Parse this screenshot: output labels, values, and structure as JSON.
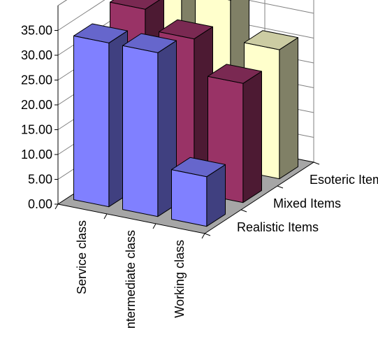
{
  "chart_data": {
    "type": "bar",
    "variant": "3d-column",
    "categories": [
      "Service class",
      "ntermediate class",
      "Working class"
    ],
    "series": [
      {
        "name": "Realistic Items",
        "values": [
          33.0,
          33.0,
          10.0
        ],
        "color": "#8080FF"
      },
      {
        "name": "Mixed Items",
        "values": [
          35.0,
          31.0,
          24.0
        ],
        "color": "#993366"
      },
      {
        "name": "Esoteric Items",
        "values": [
          34.5,
          34.0,
          26.0
        ],
        "color": "#FFFFCC"
      }
    ],
    "yticks": [
      "0.00",
      "5.00",
      "10.00",
      "15.00",
      "20.00",
      "25.00",
      "30.00",
      "35.00"
    ],
    "ylim": [
      0,
      40
    ],
    "grid": true,
    "colors": {
      "wall_fill": "#ffffff",
      "floor_fill": "#a6a6a6",
      "grid_line": "#808080",
      "edge": "#000000"
    }
  }
}
